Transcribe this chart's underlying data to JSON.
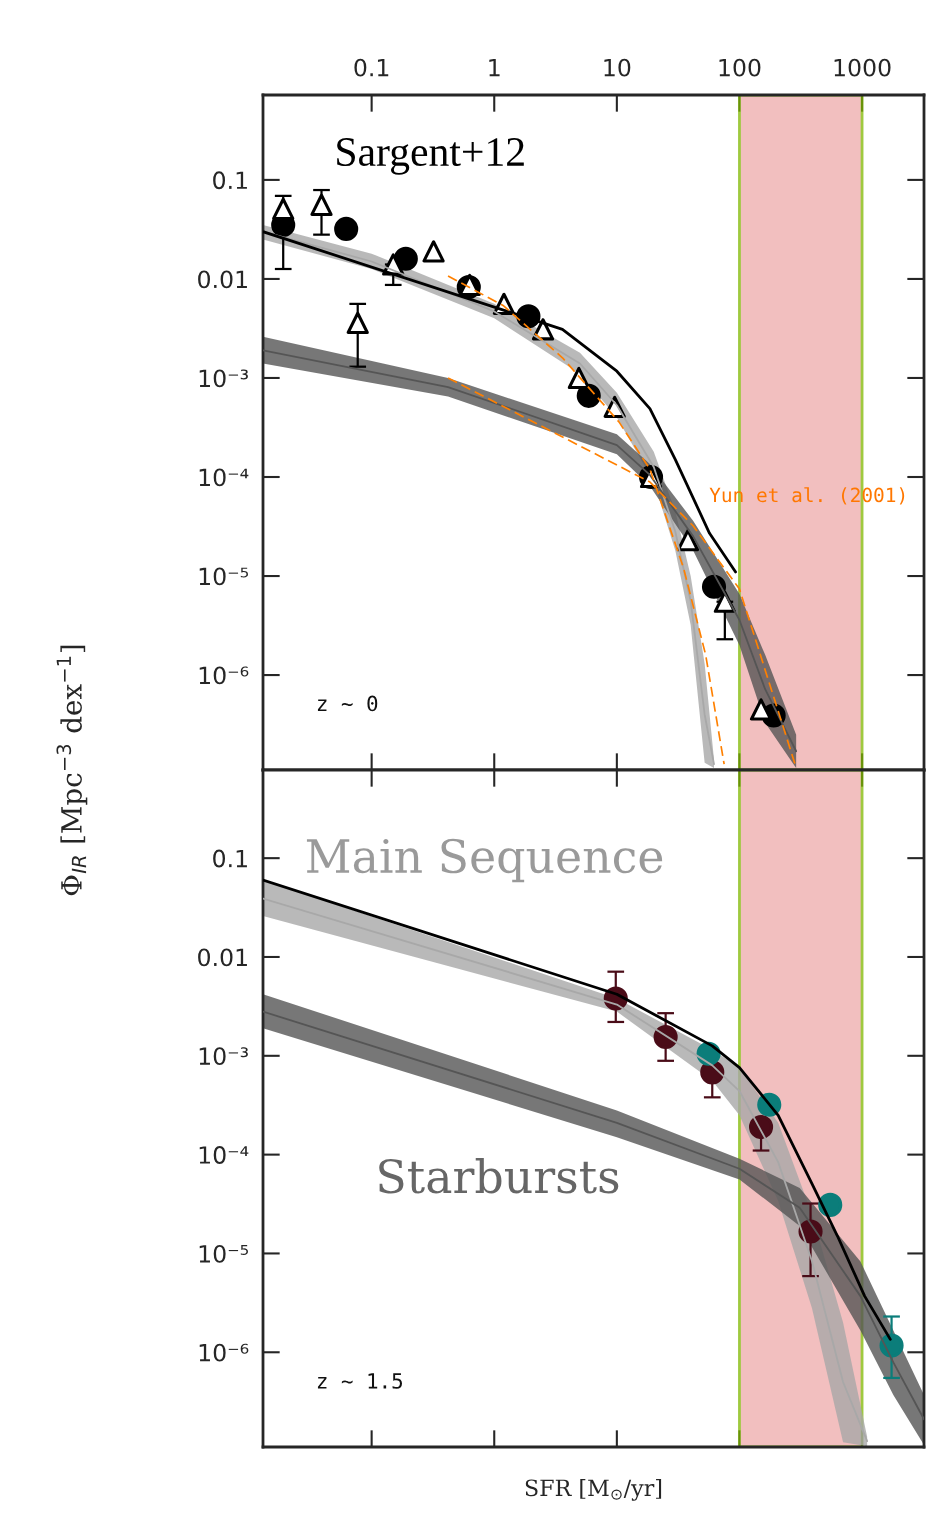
{
  "chart_data": [
    {
      "type": "line",
      "ylabel": "Φ$_{IR}$ [Mpc$^{−3}$ dex$^{−1}$]",
      "log": "xy",
      "grid": false,
      "legend": false,
      "xlim": [
        0.013,
        3200
      ],
      "xticks": [
        0.1,
        1,
        10,
        100,
        1000
      ],
      "ylim": [
        1.1e-07,
        0.72
      ],
      "yticks": [
        {
          "value": 0.1,
          "label": "0.1"
        },
        {
          "value": 0.01,
          "label": "0.01"
        },
        {
          "value": 0.001,
          "label": "10⁻³"
        },
        {
          "value": 0.0001,
          "label": "10⁻⁴"
        },
        {
          "value": 1e-05,
          "label": "10⁻⁵"
        },
        {
          "value": 1e-06,
          "label": "10⁻⁶"
        }
      ],
      "bands": [
        {
          "axis": "x",
          "from": 100,
          "to": 1000,
          "color": "#eeaaaa"
        }
      ],
      "annotations": [
        "Sargent+12",
        "z ~ 0",
        "Yun et al. (2001)"
      ],
      "series": [
        {
          "color": "#a8a8a8",
          "x": [
            0.013,
            0.1,
            1,
            5,
            10,
            20,
            30,
            40,
            52,
            62
          ],
          "values": [
            0.03,
            0.015,
            0.0047,
            0.0014,
            0.00053,
            0.000126,
            2.8e-05,
            5.6e-06,
            4e-07,
            1.26e-07
          ],
          "lower": [
            0.025,
            0.0126,
            0.004,
            0.0011,
            0.0004,
            8.9e-05,
            1.8e-05,
            3.2e-06,
            1.3e-07,
            1.15e-07
          ],
          "upper": [
            0.035,
            0.018,
            0.0056,
            0.0018,
            0.00071,
            0.00018,
            4.5e-05,
            1e-05,
            1.3e-06,
            1.4e-07
          ]
        },
        {
          "color": "#555555",
          "x": [
            0.013,
            0.42,
            10,
            18.6,
            42,
            100,
            162,
            290
          ],
          "values": [
            0.0019,
            0.00081,
            0.00021,
            0.000105,
            2.5e-05,
            3.6e-06,
            7.2e-07,
            1.7e-07
          ],
          "lower": [
            0.0014,
            0.00065,
            0.00017,
            8.1e-05,
            1.8e-05,
            2e-06,
            3.3e-07,
            1.15e-07
          ],
          "upper": [
            0.0026,
            0.001,
            0.00027,
            0.000135,
            3.6e-05,
            6.6e-06,
            1.6e-06,
            2.5e-07
          ]
        },
        {
          "color": "#000000",
          "line_style": "solid",
          "x": [
            0.013,
            3.6,
            10,
            18.6,
            30,
            57,
            93
          ],
          "values": [
            0.03,
            0.0031,
            0.00117,
            0.00049,
            0.00015,
            2.7e-05,
            1.1e-05
          ]
        },
        {
          "color": "#ff8000",
          "line_style": "dashed",
          "x": [
            0.42,
            1.18,
            3.6,
            10.4,
            18.6,
            35,
            53,
            75
          ],
          "values": [
            0.0107,
            0.0054,
            0.0016,
            0.00036,
            0.00012,
            1.2e-05,
            1.6e-06,
            1.26e-07
          ]
        },
        {
          "color": "#ff8000",
          "line_style": "dashed",
          "x": [
            0.42,
            18.6,
            42,
            100,
            284
          ],
          "values": [
            0.001,
            8.9e-05,
            3.2e-05,
            7.4e-06,
            1.26e-07
          ]
        },
        {
          "type": "scatter",
          "marker": "circle",
          "color": "#000000",
          "x": [
            0.019,
            0.062,
            0.19,
            0.62,
            1.9,
            5.9,
            19,
            62,
            190
          ],
          "values": [
            0.035,
            0.032,
            0.016,
            0.0083,
            0.0042,
            0.00066,
            0.0001,
            7.8e-06,
            3.9e-07
          ],
          "errors": [
            [
              0.0126,
              0.069
            ],
            null,
            null,
            null,
            null,
            null,
            null,
            null,
            null
          ]
        },
        {
          "type": "scatter",
          "marker": "triangle",
          "color": "#000000",
          "x": [
            0.019,
            0.039,
            0.077,
            0.15,
            0.32,
            0.63,
            1.2,
            2.5,
            4.9,
            9.6,
            19,
            38,
            76,
            150
          ],
          "values": [
            0.051,
            0.056,
            0.0036,
            0.014,
            0.019,
            0.0087,
            0.0056,
            0.0031,
            0.001,
            0.00051,
            0.0001,
            2.3e-05,
            5.5e-06,
            4.5e-07
          ],
          "errors": [
            null,
            [
              0.028,
              0.079
            ],
            [
              0.0013,
              0.0056
            ],
            [
              0.0087,
              0.014
            ],
            null,
            null,
            null,
            null,
            null,
            null,
            null,
            null,
            [
              2.3e-06,
              5.5e-06
            ],
            null
          ]
        }
      ]
    },
    {
      "type": "line",
      "xlabel": "SFR [M$_{⊙}$/yr]",
      "log": "xy",
      "grid": false,
      "legend": false,
      "tick_labels": "y",
      "xlim": [
        0.013,
        3200
      ],
      "xticks": [
        {
          "value": 0.1,
          "label": null
        },
        {
          "value": 1,
          "label": null
        },
        {
          "value": 10,
          "label": null
        },
        {
          "value": 100,
          "label": null
        },
        {
          "value": 1000,
          "label": null
        }
      ],
      "ylim": [
        1.1e-07,
        0.78
      ],
      "yticks": [
        {
          "value": 0.1,
          "label": "0.1"
        },
        {
          "value": 0.01,
          "label": "0.01"
        },
        {
          "value": 0.001,
          "label": "10⁻³"
        },
        {
          "value": 0.0001,
          "label": "10⁻⁴"
        },
        {
          "value": 1e-05,
          "label": "10⁻⁵"
        },
        {
          "value": 1e-06,
          "label": "10⁻⁶"
        }
      ],
      "bands": [
        {
          "axis": "x",
          "from": 100,
          "to": 1000,
          "color": "#eeaaaa"
        }
      ],
      "annotations": [
        "Main Sequence",
        "Starbursts",
        "z ~ 1.5"
      ],
      "series": [
        {
          "color": "#a8a8a8",
          "x": [
            0.013,
            10,
            60,
            100,
            207,
            390,
            700,
            1100
          ],
          "values": [
            0.039,
            0.0033,
            0.0008,
            0.00044,
            8.4e-05,
            8.4e-06,
            5e-07,
            1.26e-07
          ],
          "lower": [
            0.026,
            0.0028,
            0.00056,
            0.00025,
            3.4e-05,
            2.8e-06,
            1.23e-07,
            1.12e-07
          ],
          "upper": [
            0.06,
            0.0038,
            0.00115,
            0.00076,
            0.00021,
            2.5e-05,
            2e-06,
            1.4e-07
          ]
        },
        {
          "color": "#555555",
          "x": [
            0.013,
            10,
            100,
            310,
            970,
            1800,
            3200
          ],
          "values": [
            0.0028,
            0.00021,
            7.2e-05,
            2.9e-05,
            3.7e-06,
            7.9e-07,
            2.1e-07
          ],
          "lower": [
            0.0019,
            0.00015,
            5.6e-05,
            1.9e-05,
            1.66e-06,
            3.7e-07,
            1.15e-07
          ],
          "upper": [
            0.0042,
            0.00028,
            9.1e-05,
            4.6e-05,
            8.3e-06,
            1.66e-06,
            3.7e-07
          ]
        },
        {
          "color": "#000000",
          "line_style": "solid",
          "x": [
            0.013,
            10,
            60,
            100,
            207,
            390,
            630,
            1050,
            1700
          ],
          "values": [
            0.06,
            0.0042,
            0.00126,
            0.00076,
            0.00025,
            5.1e-05,
            1.5e-05,
            3.7e-06,
            1.35e-06
          ]
        },
        {
          "type": "scatter",
          "marker": "circle",
          "color": "#4a0c18",
          "x": [
            9.8,
            25,
            60,
            150,
            380
          ],
          "values": [
            0.0038,
            0.00155,
            0.00068,
            0.00019,
            1.67e-05
          ],
          "errors": [
            [
              0.0022,
              0.0071
            ],
            [
              0.00089,
              0.0027
            ],
            [
              0.00038,
              0.00068
            ],
            [
              0.00011,
              0.00019
            ],
            [
              5.9e-06,
              3.2e-05
            ]
          ]
        },
        {
          "type": "scatter",
          "marker": "circle",
          "color": "#0b7d7a",
          "x": [
            56,
            175,
            550,
            1740
          ],
          "values": [
            0.00105,
            0.00032,
            3.1e-05,
            1.17e-06
          ],
          "errors": [
            null,
            null,
            null,
            [
              5.5e-07,
              2.3e-06
            ]
          ]
        }
      ]
    }
  ]
}
